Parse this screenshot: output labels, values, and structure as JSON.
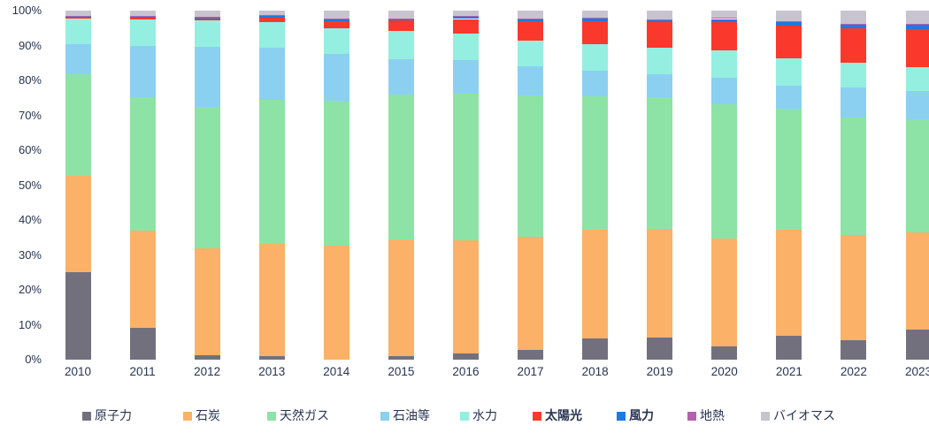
{
  "chart_data": {
    "type": "bar",
    "stacked": true,
    "percent_stacked": true,
    "unit": "%",
    "title": "",
    "xlabel": "",
    "ylabel": "",
    "ylim": [
      0,
      100
    ],
    "grid": false,
    "legend_position": "bottom",
    "y_ticks": [
      "0%",
      "10%",
      "20%",
      "30%",
      "40%",
      "50%",
      "60%",
      "70%",
      "80%",
      "90%",
      "100%"
    ],
    "categories": [
      "2010",
      "2011",
      "2012",
      "2013",
      "2014",
      "2015",
      "2016",
      "2017",
      "2018",
      "2019",
      "2020",
      "2021",
      "2022",
      "2023"
    ],
    "series": [
      {
        "id": "nuclear",
        "name": "原子力",
        "color": "#73707E",
        "bold": false,
        "values": [
          25.1,
          9.0,
          1.2,
          0.9,
          0.0,
          0.9,
          1.7,
          2.8,
          6.2,
          6.4,
          3.9,
          6.9,
          5.5,
          8.5
        ]
      },
      {
        "id": "coal",
        "name": "石炭",
        "color": "#FBB167",
        "bold": false,
        "values": [
          27.6,
          28.0,
          30.8,
          32.2,
          32.7,
          33.5,
          32.4,
          32.4,
          31.1,
          31.1,
          30.7,
          30.2,
          30.3,
          27.9
        ]
      },
      {
        "id": "natural-gas",
        "name": "天然ガス",
        "color": "#8DE3A6",
        "bold": false,
        "values": [
          29.1,
          38.1,
          40.5,
          41.4,
          41.6,
          41.6,
          42.2,
          40.5,
          38.2,
          37.8,
          38.5,
          34.7,
          33.6,
          32.5
        ]
      },
      {
        "id": "oil",
        "name": "石油等",
        "color": "#8BD0F1",
        "bold": false,
        "values": [
          8.6,
          14.8,
          17.1,
          14.9,
          13.4,
          10.1,
          9.5,
          8.3,
          7.3,
          6.5,
          7.6,
          6.8,
          8.6,
          8.1
        ]
      },
      {
        "id": "hydro",
        "name": "水力",
        "color": "#94EFE1",
        "bold": false,
        "values": [
          7.2,
          7.6,
          7.5,
          7.2,
          7.3,
          8.0,
          7.6,
          7.5,
          7.7,
          7.5,
          7.8,
          7.8,
          7.1,
          6.9
        ]
      },
      {
        "id": "solar",
        "name": "太陽光",
        "color": "#FA392C",
        "bold": true,
        "values": [
          0.3,
          0.4,
          0.6,
          1.4,
          2.0,
          3.0,
          4.2,
          5.5,
          6.5,
          7.3,
          8.2,
          9.3,
          9.9,
          10.9
        ]
      },
      {
        "id": "wind",
        "name": "風力",
        "color": "#1E79E0",
        "bold": true,
        "values": [
          0.4,
          0.4,
          0.4,
          0.5,
          0.5,
          0.5,
          0.6,
          0.6,
          0.7,
          0.7,
          0.9,
          0.9,
          1.0,
          1.1
        ]
      },
      {
        "id": "geothermal",
        "name": "地熱",
        "color": "#B263AC",
        "bold": false,
        "values": [
          0.2,
          0.2,
          0.2,
          0.2,
          0.2,
          0.2,
          0.2,
          0.2,
          0.2,
          0.2,
          0.3,
          0.3,
          0.3,
          0.3
        ]
      },
      {
        "id": "biomass",
        "name": "バイオマス",
        "color": "#C7C4CF",
        "bold": false,
        "values": [
          1.5,
          1.5,
          1.7,
          1.3,
          2.3,
          2.2,
          1.6,
          2.2,
          2.1,
          2.5,
          2.1,
          3.1,
          3.7,
          3.8
        ]
      }
    ],
    "colors": {
      "axis_text": "#273352",
      "background": "#FFFFFF"
    }
  }
}
